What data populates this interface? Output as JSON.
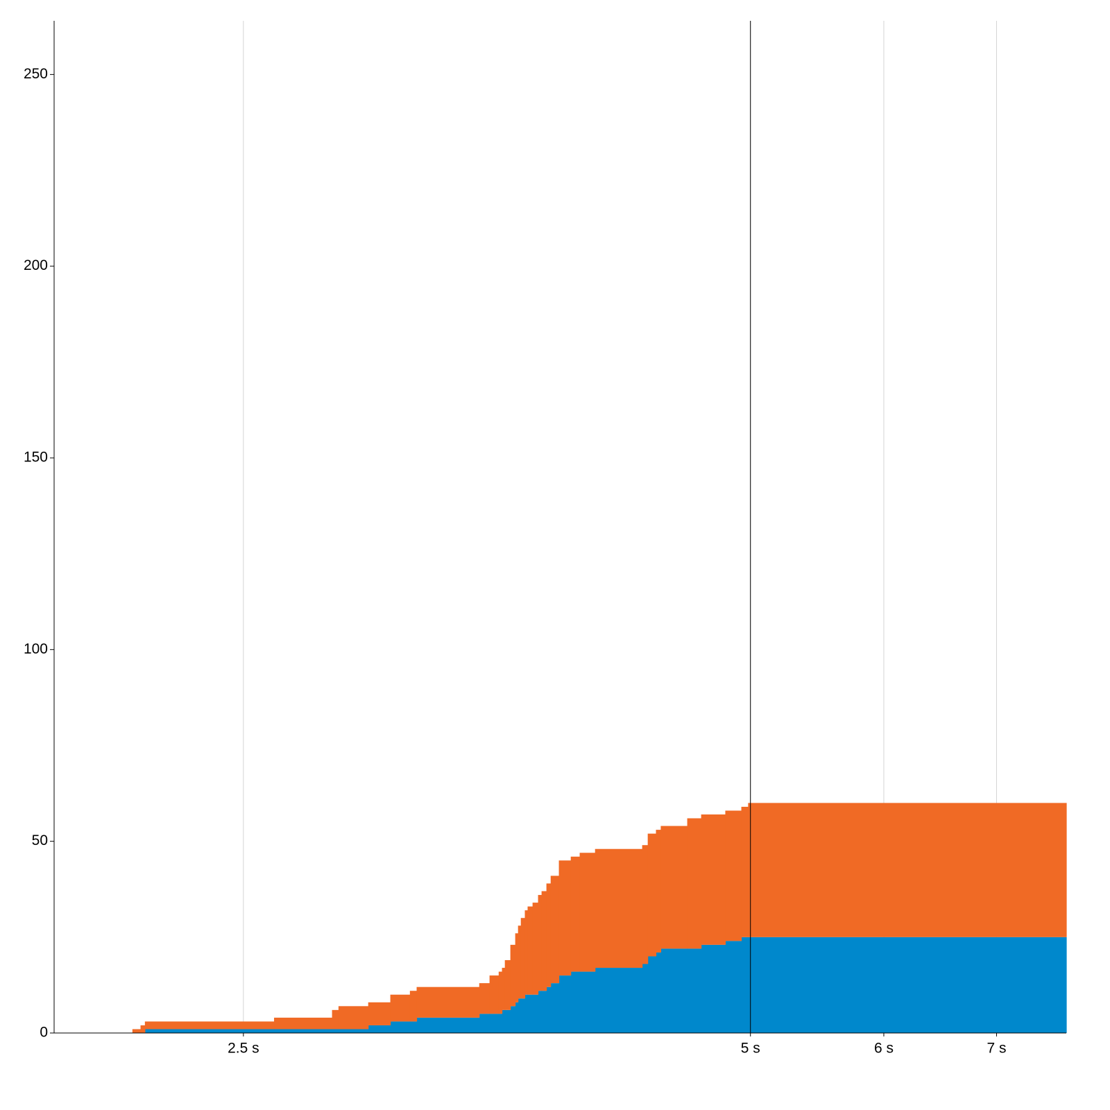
{
  "chart_data": {
    "type": "step-area-stacked",
    "x": [
      2.148,
      2.172,
      2.185,
      2.607,
      2.822,
      2.847,
      2.965,
      3.056,
      3.139,
      3.168,
      3.451,
      3.5,
      3.544,
      3.56,
      3.574,
      3.601,
      3.625,
      3.639,
      3.653,
      3.673,
      3.687,
      3.712,
      3.74,
      3.758,
      3.783,
      3.805,
      3.848,
      3.911,
      3.959,
      4.043,
      4.312,
      4.345,
      4.394,
      4.423,
      4.586,
      4.674,
      4.831,
      4.938,
      4.984
    ],
    "series": [
      {
        "color": "#0088cc",
        "values": [
          0,
          0,
          1,
          1,
          1,
          1,
          2,
          3,
          3,
          4,
          5,
          5,
          5,
          6,
          6,
          7,
          8,
          9,
          9,
          10,
          10,
          10,
          11,
          11,
          12,
          13,
          15,
          16,
          16,
          17,
          18,
          20,
          21,
          22,
          22,
          23,
          24,
          25,
          25
        ]
      },
      {
        "color": "#f06a25",
        "values": [
          1,
          2,
          2,
          3,
          5,
          6,
          6,
          7,
          8,
          8,
          8,
          10,
          11,
          11,
          13,
          16,
          18,
          19,
          21,
          22,
          23,
          24,
          25,
          26,
          27,
          28,
          30,
          30,
          31,
          31,
          31,
          32,
          32,
          32,
          34,
          34,
          34,
          34,
          35
        ]
      }
    ],
    "xlim": [
      1.93,
      7.7
    ],
    "xscale": "log",
    "xticks": [
      {
        "value": 2.5,
        "label": "2.5 s"
      },
      {
        "value": 5,
        "label": "5 s"
      },
      {
        "value": 6,
        "label": "6 s"
      },
      {
        "value": 7,
        "label": "7 s"
      }
    ],
    "ylim": [
      0,
      264
    ],
    "yticks": [
      0,
      50,
      100,
      150,
      200,
      250
    ],
    "grid": true,
    "grid_color": "#d4d4d4",
    "marker_line": {
      "value": 5,
      "color": "#000000"
    }
  }
}
